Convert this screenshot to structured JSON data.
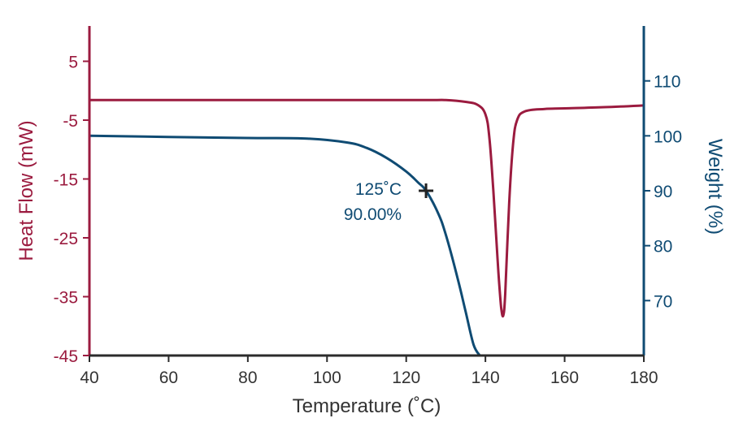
{
  "chart_data": {
    "type": "line",
    "title": "",
    "xlabel": "Temperature (˚C)",
    "ylabel_left": "Heat Flow (mW)",
    "ylabel_right": "Weight (%)",
    "xlim": [
      40,
      180
    ],
    "ylim_left": [
      -45,
      11
    ],
    "ylim_right": [
      60,
      120
    ],
    "x_ticks": [
      40,
      60,
      80,
      100,
      120,
      140,
      160,
      180
    ],
    "y_ticks_left": [
      5,
      -5,
      -15,
      -25,
      -35,
      -45
    ],
    "y_ticks_right": [
      110,
      100,
      90,
      80,
      70
    ],
    "grid": false,
    "colors": {
      "heat_flow": "#9b1b3f",
      "weight": "#0f4b73",
      "marker": "#222222"
    },
    "series": [
      {
        "axis": "left",
        "x": [
          40,
          100,
          125,
          130,
          135,
          138,
          140,
          141,
          142,
          143,
          143.5,
          144,
          144.5,
          145,
          146,
          147,
          148,
          150,
          155,
          160,
          170,
          180
        ],
        "values": [
          -1.6,
          -1.6,
          -1.6,
          -1.6,
          -1.9,
          -2.4,
          -4.0,
          -8.0,
          -17.0,
          -28.0,
          -33.0,
          -37.0,
          -38.2,
          -34.5,
          -19.0,
          -9.0,
          -5.0,
          -3.5,
          -3.1,
          -3.0,
          -2.8,
          -2.5
        ]
      },
      {
        "axis": "right",
        "x": [
          40,
          60,
          80,
          95,
          105,
          110,
          115,
          120,
          123,
          125,
          128,
          130,
          133,
          135,
          137,
          138.6
        ],
        "values": [
          100.0,
          99.8,
          99.6,
          99.5,
          98.8,
          97.8,
          96.0,
          93.5,
          91.5,
          90.0,
          86.0,
          82.0,
          74.0,
          68.0,
          62.0,
          60.0
        ]
      }
    ],
    "annotations": [
      {
        "x": 125,
        "y": 90.0,
        "axis": "right",
        "label_line1": "125˚C",
        "label_line2": "90.00%"
      }
    ]
  }
}
